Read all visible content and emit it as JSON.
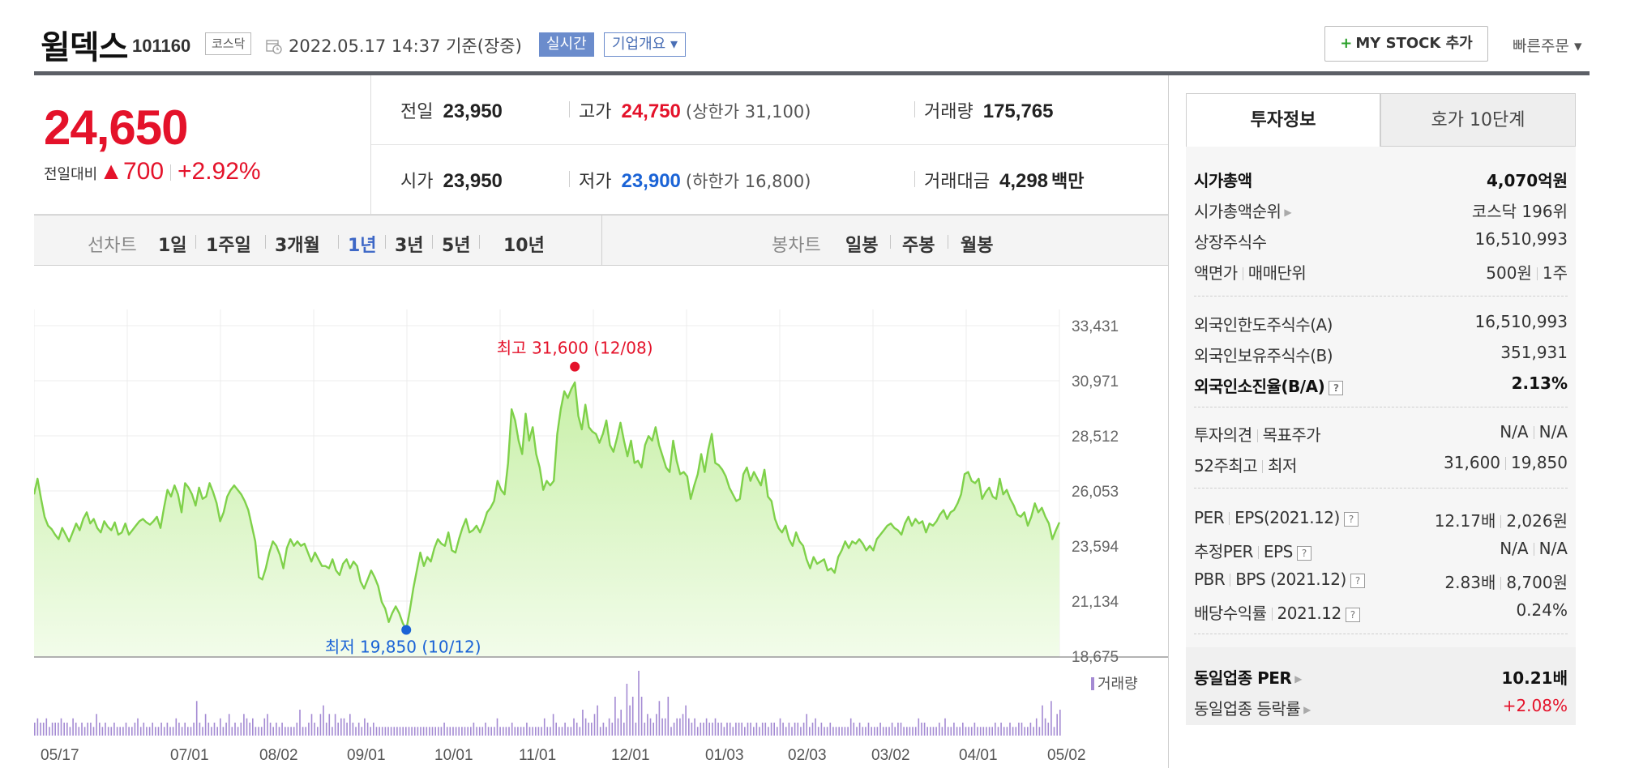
{
  "header": {
    "stock_name": "윌덱스",
    "stock_code": "101160",
    "market": "코스닥",
    "datetime": "2022.05.17 14:37  기준(장중)",
    "realtime_label": "실시간",
    "company_label": "기업개요 ▾",
    "mystock_label": "MY STOCK 추가",
    "quick_order_label": "빠른주문 ▾"
  },
  "price": {
    "current": "24,650",
    "change_label": "전일대비",
    "change_arrow": "▲",
    "change_value": "700",
    "change_pct": "+2.92%"
  },
  "quote": {
    "prev_close_label": "전일",
    "prev_close": "23,950",
    "high_label": "고가",
    "high": "24,750",
    "upper_limit": "(상한가 31,100)",
    "volume_label": "거래량",
    "volume": "175,765",
    "open_label": "시가",
    "open": "23,950",
    "low_label": "저가",
    "low": "23,900",
    "lower_limit": "(하한가 16,800)",
    "trade_value_label": "거래대금",
    "trade_value": "4,298",
    "trade_value_unit": "백만"
  },
  "chart_tabs": {
    "line_label": "선차트",
    "periods": [
      "1일",
      "1주일",
      "3개월",
      "1년",
      "3년",
      "5년",
      "10년"
    ],
    "active_period": "1년",
    "candle_label": "봉차트",
    "candles": [
      "일봉",
      "주봉",
      "월봉"
    ]
  },
  "chart_data": {
    "type": "area",
    "title": "",
    "xlabel": "",
    "ylabel": "",
    "ylim": [
      18675,
      33431
    ],
    "y_ticks": [
      "33,431",
      "30,971",
      "28,512",
      "26,053",
      "23,594",
      "21,134",
      "18,675"
    ],
    "x_ticks": [
      "05/17",
      "07/01",
      "08/02",
      "09/01",
      "10/01",
      "11/01",
      "12/01",
      "01/03",
      "02/03",
      "03/02",
      "04/01",
      "05/02"
    ],
    "annotations": {
      "high_label": "최고 31,600 (12/08)",
      "low_label": "최저 19,850 (10/12)",
      "high_value": 31600,
      "low_value": 19850
    },
    "volume_legend": "거래량",
    "colors": {
      "line": "#7fd14a",
      "fill_top": "#c8f0a8",
      "fill_bottom": "#f2fcea",
      "high": "#e4122a",
      "low": "#1a63d6",
      "volume": "#a48ad3"
    },
    "series": [
      {
        "name": "",
        "values": [
          25900,
          26600,
          25700,
          24900,
          24500,
          24350,
          24100,
          23900,
          24400,
          24100,
          23800,
          24200,
          24600,
          24300,
          24800,
          25100,
          24600,
          24800,
          24400,
          24200,
          24700,
          24450,
          24300,
          24650,
          24100,
          24200,
          24600,
          24100,
          24300,
          24500,
          24700,
          24800,
          24650,
          24550,
          24700,
          24900,
          24400,
          25300,
          26100,
          25800,
          26300,
          25900,
          25100,
          26400,
          26200,
          25900,
          25400,
          26200,
          25700,
          25800,
          26400,
          26000,
          25500,
          24700,
          25100,
          25800,
          26100,
          26300,
          26100,
          25900,
          25600,
          25200,
          24500,
          23800,
          22200,
          22100,
          22600,
          23300,
          23800,
          23600,
          23200,
          22600,
          23500,
          23900,
          23600,
          23800,
          23600,
          23700,
          23300,
          22900,
          23300,
          23000,
          22700,
          22700,
          22600,
          23000,
          22500,
          22300,
          22800,
          23000,
          22600,
          22900,
          22700,
          22000,
          21700,
          22100,
          22500,
          22200,
          21800,
          21100,
          20800,
          20200,
          20600,
          20900,
          20600,
          20150,
          19850,
          20700,
          21700,
          22500,
          23300,
          22700,
          23100,
          22900,
          23500,
          23900,
          23700,
          23600,
          24200,
          23400,
          23300,
          23900,
          24400,
          24800,
          24200,
          24300,
          24500,
          24200,
          24600,
          25100,
          25300,
          25600,
          26500,
          26100,
          25900,
          27300,
          29700,
          29200,
          28300,
          27700,
          29500,
          28300,
          28900,
          27700,
          27100,
          26100,
          26500,
          26300,
          26500,
          28600,
          29700,
          30500,
          30200,
          30600,
          30900,
          29400,
          28800,
          29900,
          28900,
          28700,
          28600,
          28200,
          28600,
          29200,
          28100,
          27800,
          28400,
          29100,
          28300,
          27600,
          28300,
          27300,
          27400,
          27100,
          28100,
          28500,
          28300,
          28900,
          28100,
          27600,
          27100,
          26900,
          28300,
          27400,
          26800,
          26900,
          26700,
          25700,
          26300,
          26800,
          27700,
          26900,
          27900,
          28600,
          27300,
          27200,
          27000,
          26700,
          26200,
          25900,
          25600,
          25700,
          26800,
          27100,
          26500,
          26900,
          26600,
          26300,
          27000,
          25800,
          25600,
          24800,
          24400,
          24200,
          24500,
          23900,
          23600,
          24200,
          23800,
          23600,
          23000,
          22600,
          23100,
          22800,
          22900,
          23000,
          22500,
          22600,
          22400,
          23100,
          23400,
          23800,
          23500,
          23800,
          23700,
          23900,
          23700,
          23400,
          23600,
          23400,
          23900,
          24100,
          24300,
          24500,
          24600,
          24400,
          24300,
          24100,
          24600,
          24900,
          24500,
          24800,
          24600,
          24700,
          24200,
          24600,
          24500,
          24700,
          25000,
          25200,
          24800,
          25100,
          25200,
          25500,
          25900,
          26800,
          26900,
          26500,
          26400,
          26600,
          25700,
          26000,
          26200,
          25800,
          25700,
          26600,
          25900,
          26100,
          25700,
          25400,
          25000,
          24900,
          25100,
          24500,
          24900,
          25500,
          25100,
          25300,
          24900,
          24600,
          23900,
          24300,
          24650
        ]
      }
    ],
    "volume_values": [
      3,
      4,
      3,
      3,
      4,
      2,
      3,
      3,
      3,
      4,
      3,
      3,
      2,
      4,
      3,
      2,
      3,
      2,
      3,
      3,
      2,
      5,
      3,
      2,
      3,
      2,
      2,
      3,
      2,
      2,
      2,
      3,
      2,
      2,
      3,
      4,
      2,
      3,
      2,
      2,
      3,
      2,
      2,
      3,
      2,
      3,
      2,
      2,
      4,
      3,
      2,
      3,
      2,
      2,
      3,
      8,
      3,
      2,
      5,
      3,
      2,
      3,
      2,
      4,
      2,
      3,
      5,
      2,
      3,
      2,
      3,
      5,
      4,
      3,
      4,
      2,
      2,
      2,
      4,
      5,
      3,
      2,
      3,
      2,
      3,
      2,
      2,
      2,
      2,
      3,
      6,
      2,
      2,
      3,
      5,
      3,
      2,
      5,
      7,
      3,
      5,
      2,
      5,
      3,
      4,
      4,
      3,
      5,
      3,
      2,
      3,
      2,
      4,
      3,
      2,
      3,
      2,
      2,
      2,
      2,
      2,
      2,
      2,
      2,
      2,
      2,
      2,
      2,
      2,
      2,
      2,
      2,
      2,
      2,
      2,
      2,
      2,
      2,
      2,
      3,
      2,
      2,
      2,
      2,
      2,
      2,
      2,
      2,
      2,
      3,
      2,
      2,
      2,
      3,
      2,
      2,
      2,
      4,
      2,
      2,
      2,
      2,
      3,
      2,
      2,
      2,
      2,
      3,
      2,
      2,
      2,
      2,
      2,
      4,
      2,
      2,
      5,
      3,
      2,
      2,
      3,
      2,
      2,
      4,
      3,
      2,
      6,
      4,
      3,
      3,
      5,
      7,
      2,
      3,
      2,
      4,
      3,
      9,
      4,
      6,
      3,
      12,
      7,
      9,
      3,
      15,
      9,
      3,
      5,
      4,
      3,
      5,
      8,
      4,
      4,
      9,
      2,
      3,
      4,
      4,
      5,
      7,
      4,
      3,
      4,
      2,
      3,
      3,
      4,
      3,
      3,
      4,
      3,
      3,
      2,
      3,
      3,
      2,
      3,
      3,
      3,
      2,
      3,
      3,
      2,
      3,
      2,
      3,
      3,
      2,
      3,
      3,
      2,
      4,
      3,
      2,
      3,
      2,
      3,
      3,
      2,
      3,
      5,
      2,
      3,
      4,
      2,
      3,
      2,
      2,
      3,
      2,
      2,
      2,
      2,
      2,
      2,
      4,
      3,
      2,
      3,
      2,
      2,
      3,
      2,
      2,
      2,
      3,
      2,
      2,
      2,
      3,
      2,
      3,
      3,
      2,
      2,
      2,
      2,
      2,
      4,
      3,
      3,
      2,
      2,
      2,
      2,
      3,
      2,
      4,
      2,
      2,
      3,
      2,
      2,
      3,
      2,
      2,
      2,
      3,
      2,
      2,
      2,
      2,
      2,
      2,
      3,
      2,
      3,
      2,
      2,
      3,
      2,
      2,
      3,
      3,
      2,
      2,
      3,
      2,
      4,
      2,
      7,
      4,
      3,
      8,
      2,
      5,
      6
    ]
  },
  "right_panel": {
    "tab_invest": "투자정보",
    "tab_orderbook": "호가 10단계",
    "market_cap_label": "시가총액",
    "market_cap": "4,070억원",
    "market_cap_rank_label": "시가총액순위",
    "market_cap_rank": "코스닥 196위",
    "listed_shares_label": "상장주식수",
    "listed_shares": "16,510,993",
    "par_label": "액면가",
    "unit_label": "매매단위",
    "par_value": "500원",
    "trade_unit": "1주",
    "foreign_limit_label": "외국인한도주식수(A)",
    "foreign_limit": "16,510,993",
    "foreign_hold_label": "외국인보유주식수(B)",
    "foreign_hold": "351,931",
    "foreign_ratio_label": "외국인소진율(B/A)",
    "foreign_ratio": "2.13%",
    "opinion_label": "투자의견",
    "target_label": "목표주가",
    "opinion": "N/A",
    "target": "N/A",
    "w52_high_label": "52주최고",
    "w52_low_label": "최저",
    "w52_high": "31,600",
    "w52_low": "19,850",
    "per_label": "PER",
    "eps_label": "EPS(2021.12)",
    "per": "12.17배",
    "eps": "2,026원",
    "est_per_label": "추정PER",
    "est_eps_label": "EPS",
    "est_per": "N/A",
    "est_eps": "N/A",
    "pbr_label": "PBR",
    "bps_label": "BPS (2021.12)",
    "pbr": "2.83배",
    "bps": "8,700원",
    "dividend_label": "배당수익률",
    "dividend_period": "2021.12",
    "dividend": "0.24%",
    "sector_per_label": "동일업종 PER",
    "sector_per": "10.21배",
    "sector_change_label": "동일업종 등락률",
    "sector_change": "+2.08%"
  }
}
